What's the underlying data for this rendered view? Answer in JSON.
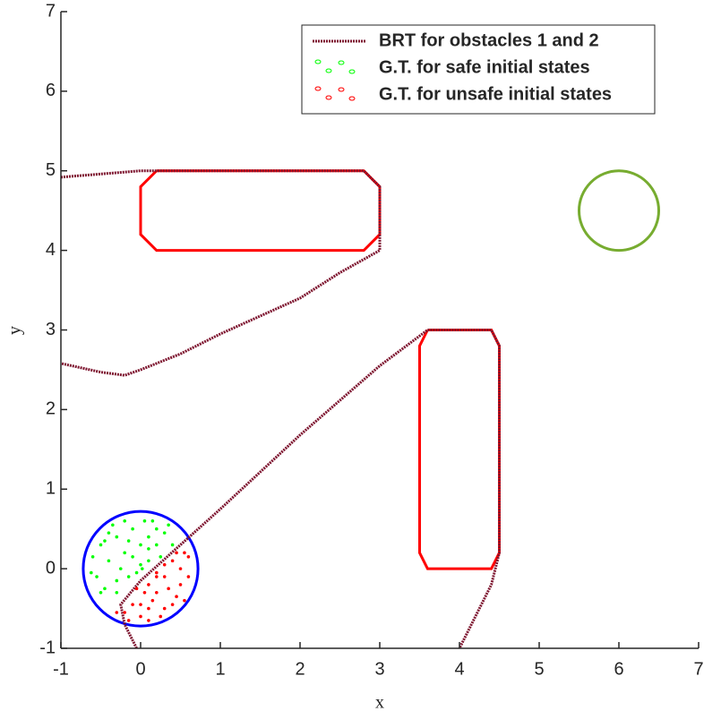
{
  "chart_data": {
    "type": "line",
    "xlabel": "x",
    "ylabel": "y",
    "xlim": [
      -1,
      7
    ],
    "ylim": [
      -1,
      7
    ],
    "xticks": [
      -1,
      0,
      1,
      2,
      3,
      4,
      5,
      6,
      7
    ],
    "yticks": [
      -1,
      0,
      1,
      2,
      3,
      4,
      5,
      6,
      7
    ],
    "legend": "upper right",
    "series": [
      {
        "name": "BRT for obstacles 1 and 2",
        "color": "#7e1630",
        "x": [
          -1,
          0,
          0.2,
          2.8,
          3,
          3,
          3,
          2.5,
          2,
          1,
          0.5,
          0,
          -0.2,
          -0.5,
          -1,
          null,
          -0.05,
          -0.2,
          -0.25,
          0,
          0.6,
          1,
          2,
          3,
          3.6,
          4.4,
          4.5,
          4.5,
          4.4,
          4.2,
          4.0
        ],
        "y": [
          4.92,
          5.0,
          5.0,
          5.0,
          4.8,
          4.2,
          4.0,
          3.72,
          3.4,
          2.95,
          2.7,
          2.5,
          2.43,
          2.47,
          2.58,
          null,
          -1,
          -0.7,
          -0.45,
          -0.15,
          0.39,
          0.75,
          1.68,
          2.55,
          3.0,
          3.0,
          2.8,
          0.2,
          -0.2,
          -0.6,
          -1.0
        ]
      },
      {
        "name": "G.T. for safe initial states",
        "color": "#00ff00",
        "x": [
          -0.5,
          -0.4,
          -0.3,
          -0.2,
          -0.1,
          0,
          0.1,
          0.2,
          0.3,
          -0.55,
          -0.45,
          -0.3,
          -0.15,
          0,
          0.1,
          0.2,
          -0.6,
          -0.35,
          0.05,
          -0.2,
          0.4,
          0.25,
          -0.05,
          -0.25,
          -0.5,
          0.15,
          -0.1,
          0.02,
          -0.4,
          -0.62,
          0.35,
          -0.15,
          0.1,
          -0.3,
          -0.45
        ],
        "y": [
          0.3,
          0.1,
          0.4,
          0.2,
          0.5,
          0.3,
          0.4,
          0.3,
          0.45,
          -0.1,
          -0.25,
          -0.3,
          -0.1,
          0.05,
          0.1,
          0.5,
          0.15,
          0.55,
          0.6,
          0.6,
          0.3,
          0.15,
          -0.05,
          0.0,
          -0.3,
          0.6,
          0.15,
          0.0,
          0.45,
          -0.05,
          0.55,
          0.35,
          0.25,
          -0.15,
          0.35
        ]
      },
      {
        "name": "G.T. for unsafe initial states",
        "color": "#ff0000",
        "x": [
          0.3,
          0.4,
          0.5,
          0.6,
          0.2,
          0.1,
          0,
          -0.1,
          -0.2,
          0.3,
          0.45,
          0.55,
          0.2,
          0.1,
          0.05,
          -0.05,
          0.35,
          0.5,
          0.6,
          0.25,
          -0.15,
          0.4,
          0.15,
          0.3,
          0.45,
          0,
          -0.3,
          0.55,
          0.2,
          0.1
        ],
        "y": [
          -0.1,
          0.1,
          0,
          -0.1,
          -0.3,
          -0.5,
          -0.6,
          -0.45,
          -0.55,
          -0.5,
          -0.35,
          0.2,
          -0.1,
          -0.2,
          -0.3,
          -0.25,
          -0.25,
          -0.2,
          0.15,
          -0.6,
          -0.65,
          -0.45,
          -0.4,
          0.05,
          0.2,
          -0.45,
          -0.55,
          -0.4,
          -0.05,
          -0.65
        ]
      }
    ],
    "obstacles": [
      {
        "color": "#ff0000",
        "x": [
          0.2,
          2.8,
          3,
          3,
          2.8,
          0.2,
          0,
          0,
          0.2
        ],
        "y": [
          5,
          5,
          4.8,
          4.2,
          4,
          4,
          4.2,
          4.8,
          5
        ]
      },
      {
        "color": "#ff0000",
        "x": [
          3.6,
          4.4,
          4.5,
          4.5,
          4.4,
          3.6,
          3.5,
          3.5,
          3.6
        ],
        "y": [
          3,
          3,
          2.8,
          0.2,
          0,
          0,
          0.2,
          2.8,
          3
        ]
      }
    ],
    "circles": [
      {
        "color": "#77ac30",
        "cx": 6,
        "cy": 4.5,
        "r": 0.5
      },
      {
        "color": "#0000ff",
        "cx": 0,
        "cy": 0,
        "r": 0.72
      }
    ]
  }
}
